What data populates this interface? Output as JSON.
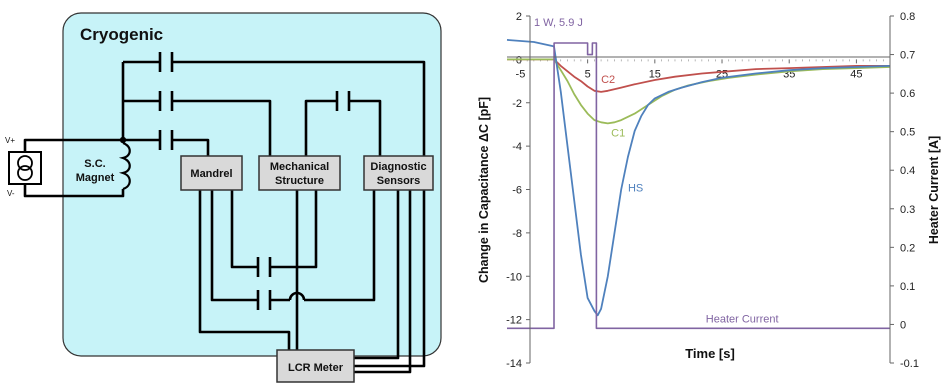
{
  "circuit": {
    "region_label": "Cryogenic",
    "source_plus": "V+",
    "source_minus": "V-",
    "magnet_label": [
      "S.C.",
      "Magnet"
    ],
    "mandrel_label": "Mandrel",
    "mechanical_label": [
      "Mechanical",
      "Structure"
    ],
    "diagnostic_label": [
      "Diagnostic",
      "Sensors"
    ],
    "lcr_label": "LCR Meter",
    "colors": {
      "cryogenic_fill": "#c7f3f8",
      "box_fill": "#d9d9d9",
      "wire": "#000000"
    }
  },
  "chart_data": {
    "type": "line",
    "xlabel": "Time [s]",
    "ylabel": "Change in Capacitance ΔC [pF]",
    "y2label": "Heater Current [A]",
    "xlim": [
      -7,
      50
    ],
    "ylim": [
      -14,
      2
    ],
    "y2lim": [
      -0.1,
      0.8
    ],
    "x_ticks": [
      -5,
      5,
      15,
      25,
      35,
      45
    ],
    "y_ticks": [
      2,
      0,
      -2,
      -4,
      -6,
      -8,
      -10,
      -12,
      -14
    ],
    "y2_ticks": [
      0.8,
      0.7,
      0.6,
      0.5,
      0.4,
      0.3,
      0.2,
      0.1,
      0,
      -0.1
    ],
    "annotation": "1 W, 5.9 J",
    "grid": false,
    "series": [
      {
        "name": "C2",
        "color": "#c0504d",
        "axis": "left",
        "x": [
          -7,
          0,
          1,
          2,
          3,
          4,
          5,
          6,
          7,
          8,
          10,
          12,
          15,
          18,
          22,
          26,
          30,
          35,
          40,
          45,
          50
        ],
        "y": [
          0,
          0,
          -0.3,
          -0.55,
          -0.8,
          -1.0,
          -1.25,
          -1.45,
          -1.5,
          -1.45,
          -1.3,
          -1.15,
          -0.95,
          -0.8,
          -0.65,
          -0.55,
          -0.45,
          -0.4,
          -0.35,
          -0.3,
          -0.3
        ]
      },
      {
        "name": "C1",
        "color": "#9bbb59",
        "axis": "left",
        "x": [
          -7,
          0,
          1,
          2,
          3,
          4,
          5,
          6,
          7,
          8,
          9,
          10,
          12,
          14,
          16,
          18,
          20,
          23,
          26,
          30,
          35,
          40,
          45,
          50
        ],
        "y": [
          0,
          0,
          -0.5,
          -1.0,
          -1.6,
          -2.1,
          -2.5,
          -2.8,
          -2.9,
          -2.95,
          -2.9,
          -2.8,
          -2.5,
          -2.1,
          -1.7,
          -1.4,
          -1.2,
          -1.0,
          -0.85,
          -0.7,
          -0.55,
          -0.45,
          -0.4,
          -0.35
        ]
      },
      {
        "name": "HS",
        "color": "#4f81bd",
        "axis": "left",
        "x": [
          -7,
          -3,
          0,
          1,
          2,
          3,
          4,
          5,
          6,
          6.5,
          7,
          8,
          9,
          10,
          11,
          12,
          13,
          14,
          15,
          17,
          19,
          22,
          25,
          30,
          35,
          40,
          45,
          50
        ],
        "y": [
          0.9,
          0.8,
          0.6,
          -1.5,
          -4.0,
          -6.5,
          -9.0,
          -11.0,
          -11.6,
          -11.8,
          -11.5,
          -10.0,
          -8.0,
          -6.0,
          -4.5,
          -3.3,
          -2.6,
          -2.1,
          -1.8,
          -1.5,
          -1.3,
          -1.05,
          -0.85,
          -0.65,
          -0.5,
          -0.4,
          -0.35,
          -0.3
        ]
      },
      {
        "name": "Heater Current",
        "color": "#8064a2",
        "axis": "right",
        "x": [
          -7,
          0,
          0.01,
          4.99,
          5.0,
          5.7,
          5.71,
          6.3,
          6.31,
          50
        ],
        "y": [
          -0.01,
          -0.01,
          0.73,
          0.73,
          0.7,
          0.7,
          0.73,
          0.73,
          -0.01,
          -0.01
        ]
      }
    ]
  }
}
